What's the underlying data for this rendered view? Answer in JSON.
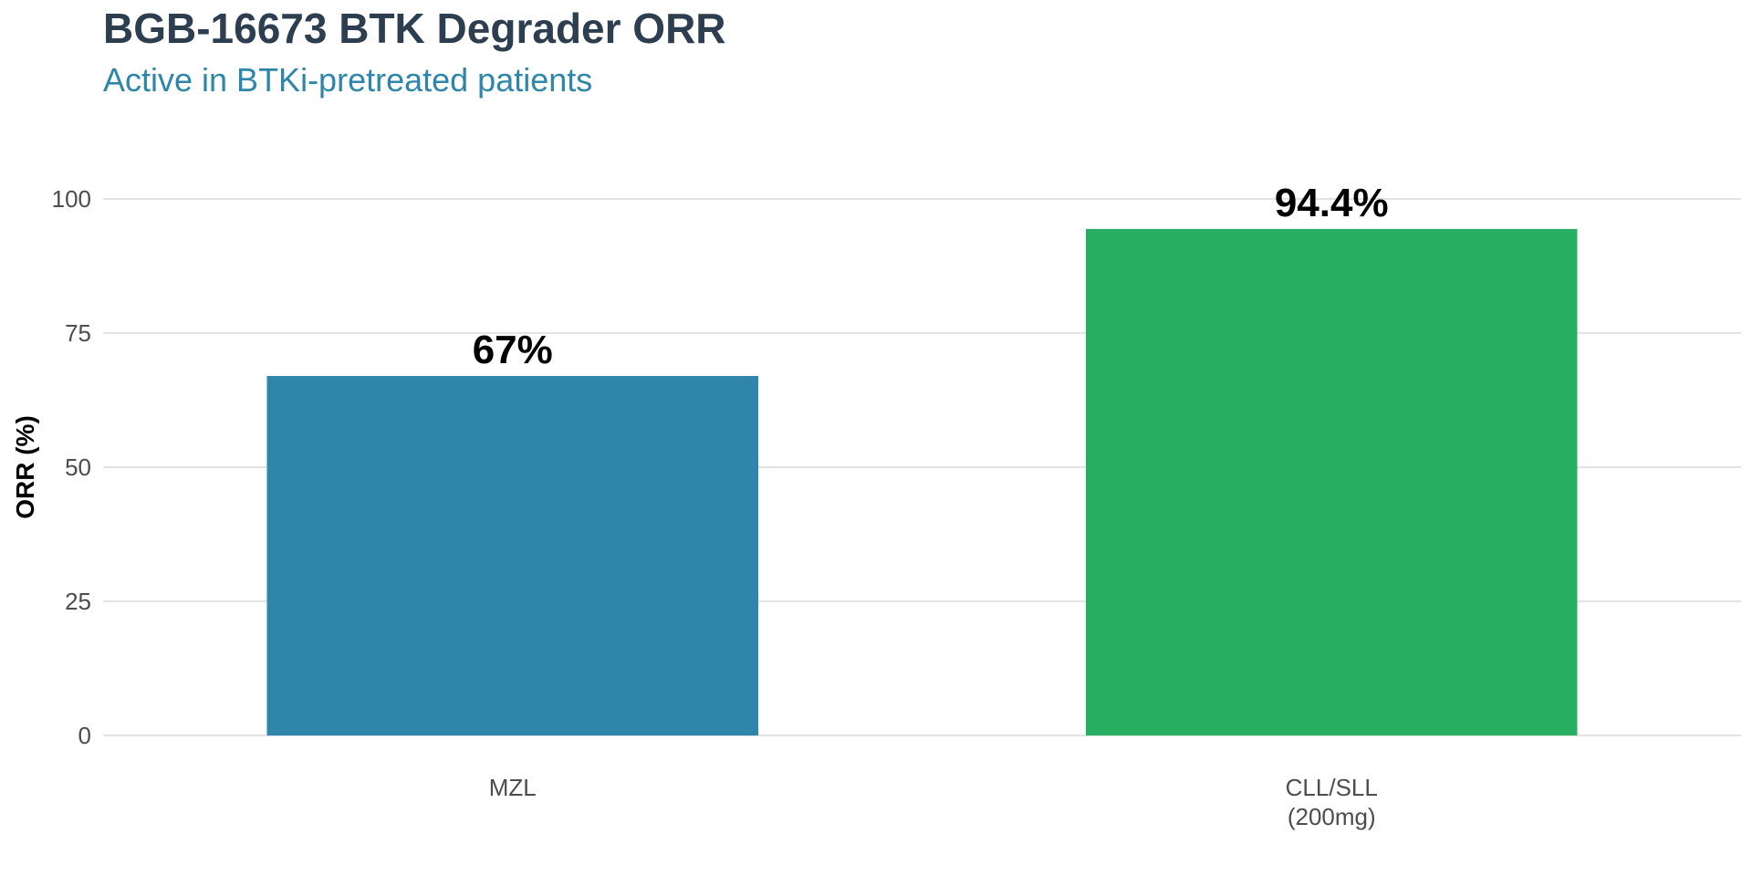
{
  "chart_data": {
    "type": "bar",
    "title": "BGB-16673 BTK Degrader ORR",
    "subtitle": "Active in BTKi-pretreated patients",
    "xlabel": "",
    "ylabel": "ORR (%)",
    "ylim": [
      0,
      110
    ],
    "yticks": [
      0,
      25,
      50,
      75,
      100
    ],
    "grid": true,
    "legend": "none",
    "categories": [
      [
        "MZL"
      ],
      [
        "CLL/SLL",
        "(200mg)"
      ]
    ],
    "values": [
      67,
      94.4
    ],
    "data_labels": [
      "67%",
      "94.4%"
    ],
    "colors": [
      "#2e86ab",
      "#27ae60"
    ]
  }
}
